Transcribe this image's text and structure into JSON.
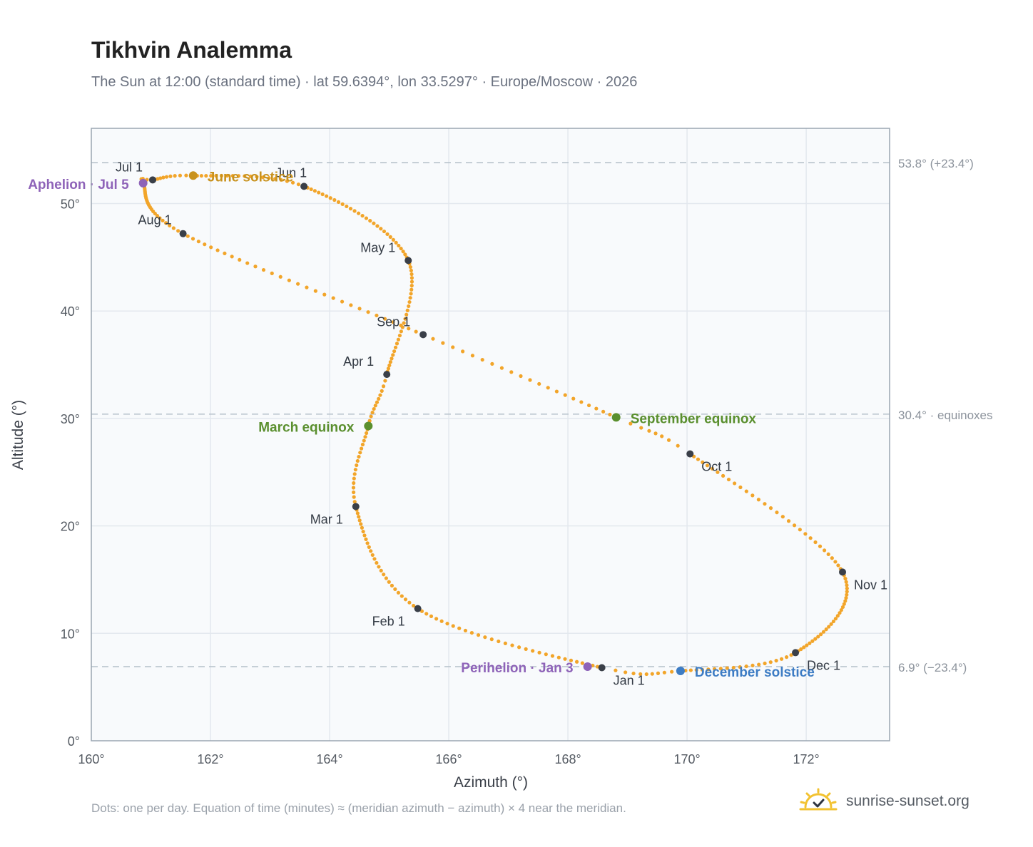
{
  "title": "Tikhvin Analemma",
  "subtitle": "The Sun at 12:00 (standard time) · lat 59.6394°, lon 33.5297° · Europe/Moscow · 2026",
  "footnote": "Dots: one per day. Equation of time (minutes) ≈ (meridian azimuth − azimuth) × 4 near the meridian.",
  "brand": {
    "name": "sunrise-sunset.org",
    "icon": "sun-logo-icon"
  },
  "colors": {
    "curve": "#f2a52a",
    "month_marker": "#3a3f48",
    "aphelion": "#8e63b8",
    "perihelion": "#8e63b8",
    "june_solstice": "#c8921e",
    "december_solstice": "#3d7cc4",
    "equinox": "#5a8f2e",
    "reference_line": "#b8c3cc",
    "plot_background": "#f8fafc",
    "plot_border": "#9aa6b2"
  },
  "chart_data": {
    "type": "scatter",
    "xlabel": "Azimuth (°)",
    "ylabel": "Altitude (°)",
    "xlim": [
      160,
      173.4
    ],
    "ylim": [
      0,
      57
    ],
    "xticks": [
      "160°",
      "162°",
      "164°",
      "166°",
      "168°",
      "170°",
      "172°"
    ],
    "yticks": [
      "0°",
      "10°",
      "20°",
      "30°",
      "40°",
      "50°"
    ],
    "grid": true,
    "reference_lines": [
      {
        "y": 53.8,
        "label": "53.8° (+23.4°)"
      },
      {
        "y": 30.4,
        "label": "30.4° · equinoxes"
      },
      {
        "y": 6.9,
        "label": "6.9° (−23.4°)"
      }
    ],
    "daily_path_anchors": [
      {
        "day": 1,
        "az": 168.57,
        "alt": 6.8
      },
      {
        "day": 32,
        "az": 165.48,
        "alt": 12.3
      },
      {
        "day": 60,
        "az": 164.44,
        "alt": 21.8
      },
      {
        "day": 79,
        "az": 164.65,
        "alt": 29.3
      },
      {
        "day": 91,
        "az": 164.96,
        "alt": 34.1
      },
      {
        "day": 121,
        "az": 165.32,
        "alt": 44.7
      },
      {
        "day": 152,
        "az": 163.57,
        "alt": 51.6
      },
      {
        "day": 172,
        "az": 161.71,
        "alt": 52.6
      },
      {
        "day": 182,
        "az": 161.03,
        "alt": 52.2
      },
      {
        "day": 186,
        "az": 160.87,
        "alt": 51.9
      },
      {
        "day": 213,
        "az": 161.54,
        "alt": 47.2
      },
      {
        "day": 244,
        "az": 165.57,
        "alt": 37.8
      },
      {
        "day": 266,
        "az": 168.81,
        "alt": 30.1
      },
      {
        "day": 274,
        "az": 170.05,
        "alt": 26.7
      },
      {
        "day": 305,
        "az": 172.61,
        "alt": 15.7
      },
      {
        "day": 335,
        "az": 171.82,
        "alt": 8.2
      },
      {
        "day": 355,
        "az": 169.89,
        "alt": 6.5
      },
      {
        "day": 365,
        "az": 168.6,
        "alt": 6.8
      }
    ],
    "month_markers": [
      {
        "label": "Jan 1",
        "az": 168.57,
        "alt": 6.8
      },
      {
        "label": "Feb 1",
        "az": 165.48,
        "alt": 12.3
      },
      {
        "label": "Mar 1",
        "az": 164.44,
        "alt": 21.8
      },
      {
        "label": "Apr 1",
        "az": 164.96,
        "alt": 34.1
      },
      {
        "label": "May 1",
        "az": 165.32,
        "alt": 44.7
      },
      {
        "label": "Jun 1",
        "az": 163.57,
        "alt": 51.6
      },
      {
        "label": "Jul 1",
        "az": 161.03,
        "alt": 52.2
      },
      {
        "label": "Aug 1",
        "az": 161.54,
        "alt": 47.2
      },
      {
        "label": "Sep 1",
        "az": 165.57,
        "alt": 37.8
      },
      {
        "label": "Oct 1",
        "az": 170.05,
        "alt": 26.7
      },
      {
        "label": "Nov 1",
        "az": 172.61,
        "alt": 15.7
      },
      {
        "label": "Dec 1",
        "az": 171.82,
        "alt": 8.2
      }
    ],
    "events": [
      {
        "label": "Aphelion · Jul 5",
        "az": 160.87,
        "alt": 51.9,
        "kind": "aphelion"
      },
      {
        "label": "June solstice",
        "az": 161.71,
        "alt": 52.6,
        "kind": "june_solstice"
      },
      {
        "label": "March equinox",
        "az": 164.65,
        "alt": 29.3,
        "kind": "equinox"
      },
      {
        "label": "September equinox",
        "az": 168.81,
        "alt": 30.1,
        "kind": "equinox"
      },
      {
        "label": "Perihelion · Jan 3",
        "az": 168.33,
        "alt": 6.9,
        "kind": "perihelion"
      },
      {
        "label": "December solstice",
        "az": 169.89,
        "alt": 6.5,
        "kind": "december_solstice"
      }
    ]
  }
}
